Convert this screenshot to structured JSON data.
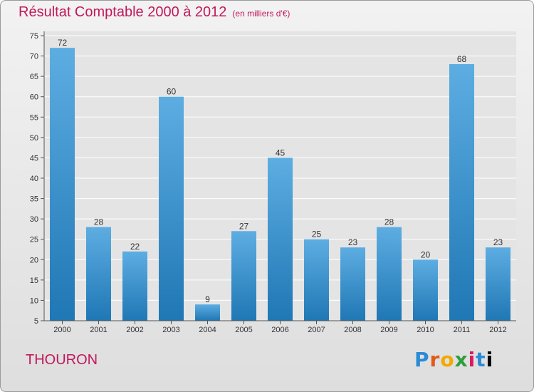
{
  "header": {
    "title": "Résultat Comptable 2000 à 2012",
    "subtitle": "(en milliers d'€)"
  },
  "footer": {
    "city": "THOURON",
    "logo_text": "Proxiti"
  },
  "colors": {
    "title": "#c2185b",
    "bar_top": "#5dade2",
    "bar_bottom": "#1f77b4"
  },
  "chart_data": {
    "type": "bar",
    "title": "Résultat Comptable 2000 à 2012",
    "subtitle": "(en milliers d'€)",
    "xlabel": "",
    "ylabel": "",
    "categories": [
      "2000",
      "2001",
      "2002",
      "2003",
      "2004",
      "2005",
      "2006",
      "2007",
      "2008",
      "2009",
      "2010",
      "2011",
      "2012"
    ],
    "values": [
      72,
      28,
      22,
      60,
      9,
      27,
      45,
      25,
      23,
      28,
      20,
      68,
      23
    ],
    "ylim": [
      5,
      75
    ],
    "yticks": [
      5,
      10,
      15,
      20,
      25,
      30,
      35,
      40,
      45,
      50,
      55,
      60,
      65,
      70,
      75
    ],
    "grid": true,
    "legend": "none"
  }
}
